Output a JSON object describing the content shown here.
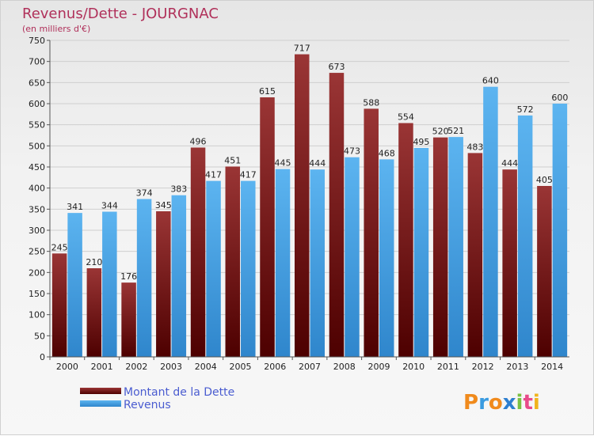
{
  "chart_data": {
    "type": "bar",
    "title": "Revenus/Dette - JOURGNAC",
    "subtitle": "(en milliers d'€)",
    "categories": [
      "2000",
      "2001",
      "2002",
      "2003",
      "2004",
      "2005",
      "2006",
      "2007",
      "2008",
      "2009",
      "2010",
      "2011",
      "2012",
      "2013",
      "2014"
    ],
    "series": [
      {
        "name": "Montant de la Dette",
        "color": "#7a1c1c",
        "values": [
          245,
          210,
          176,
          345,
          496,
          451,
          615,
          717,
          673,
          588,
          554,
          520,
          483,
          444,
          405
        ]
      },
      {
        "name": "Revenus",
        "color": "#4aa3e6",
        "values": [
          341,
          344,
          374,
          383,
          417,
          417,
          445,
          444,
          473,
          468,
          495,
          521,
          640,
          572,
          600
        ]
      }
    ],
    "ylim": [
      0,
      750
    ],
    "yticks": [
      0,
      50,
      100,
      150,
      200,
      250,
      300,
      350,
      400,
      450,
      500,
      550,
      600,
      650,
      700,
      750
    ],
    "grid": true,
    "legend_position": "bottom-left"
  },
  "branding": {
    "logo_text": "Proxiti"
  }
}
